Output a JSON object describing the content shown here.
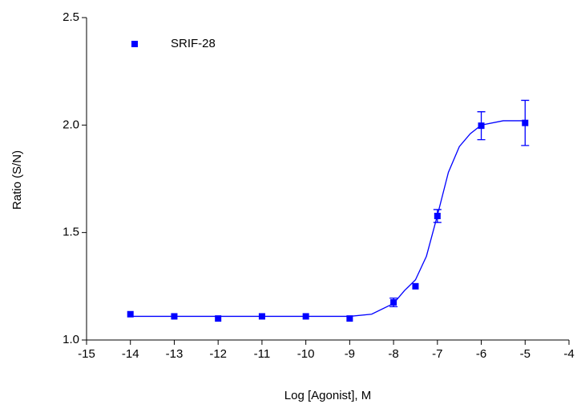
{
  "chart_data": {
    "type": "scatter",
    "xlabel": "Log [Agonist], M",
    "ylabel": "Ratio (S/N)",
    "xlim": [
      -15,
      -4
    ],
    "ylim": [
      1.0,
      2.5
    ],
    "xticks": [
      -15,
      -14,
      -13,
      -12,
      -11,
      -10,
      -9,
      -8,
      -7,
      -6,
      -5,
      -4
    ],
    "yticks": [
      {
        "value": 1.0,
        "label": "1.0"
      },
      {
        "value": 1.5,
        "label": "1.5"
      },
      {
        "value": 2.0,
        "label": "2.0"
      },
      {
        "value": 2.5,
        "label": "2.5"
      }
    ],
    "legend": "upper left",
    "series": [
      {
        "name": "SRIF-28",
        "color": "#0000ff",
        "x": [
          -14,
          -13,
          -12,
          -11,
          -10,
          -9,
          -8,
          -7.5,
          -7,
          -6,
          -5
        ],
        "values": [
          1.12,
          1.11,
          1.1,
          1.11,
          1.11,
          1.1,
          1.175,
          1.25,
          1.577,
          1.997,
          2.01
        ],
        "errors": [
          null,
          null,
          null,
          null,
          null,
          null,
          0.02,
          null,
          0.03,
          0.065,
          0.105
        ],
        "curve": {
          "x": [
            -14,
            -9,
            -8.5,
            -8,
            -7.75,
            -7.5,
            -7.25,
            -7,
            -6.75,
            -6.5,
            -6.25,
            -6,
            -5.5,
            -5
          ],
          "values": [
            1.11,
            1.11,
            1.12,
            1.17,
            1.23,
            1.28,
            1.39,
            1.58,
            1.78,
            1.9,
            1.96,
            2.0,
            2.02,
            2.02
          ]
        }
      }
    ]
  }
}
